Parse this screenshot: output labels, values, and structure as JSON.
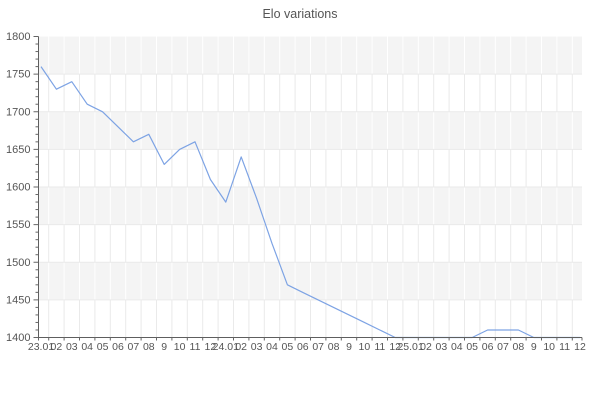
{
  "chart_data": {
    "type": "line",
    "title": "Elo variations",
    "categories": [
      "23.01",
      "02",
      "03",
      "04",
      "05",
      "06",
      "07",
      "08",
      "9",
      "10",
      "11",
      "12",
      "24.01",
      "02",
      "03",
      "04",
      "05",
      "06",
      "07",
      "08",
      "9",
      "10",
      "11",
      "12",
      "25.01",
      "02",
      "03",
      "04",
      "05",
      "06",
      "07",
      "08",
      "9",
      "10",
      "11",
      "12"
    ],
    "values": [
      1760,
      1730,
      1740,
      1710,
      1700,
      1680,
      1660,
      1670,
      1630,
      1650,
      1660,
      1610,
      1580,
      1640,
      1585,
      1525,
      1470,
      1460,
      1450,
      1440,
      1430,
      1420,
      1410,
      1400,
      1400,
      1400,
      1400,
      1400,
      1400,
      1410,
      1410,
      1410,
      1400,
      1400,
      1400,
      1400
    ],
    "xlabel": "",
    "ylabel": "",
    "ylim": [
      1400,
      1800
    ],
    "y_ticks": [
      1800,
      1750,
      1700,
      1650,
      1600,
      1550,
      1500,
      1450,
      1400
    ],
    "y_major_step": 50,
    "y_minor_step": 10,
    "grid": "on",
    "legend": "none",
    "colors": {
      "line": "#7da3e4",
      "band_gray": "#f4f4f4",
      "grid_on_gray": "#ffffff",
      "grid_on_white": "#eaeaea",
      "axis": "#5e5e5e",
      "tick": "#666666",
      "text": "#555555",
      "background": "#ffffff"
    }
  }
}
